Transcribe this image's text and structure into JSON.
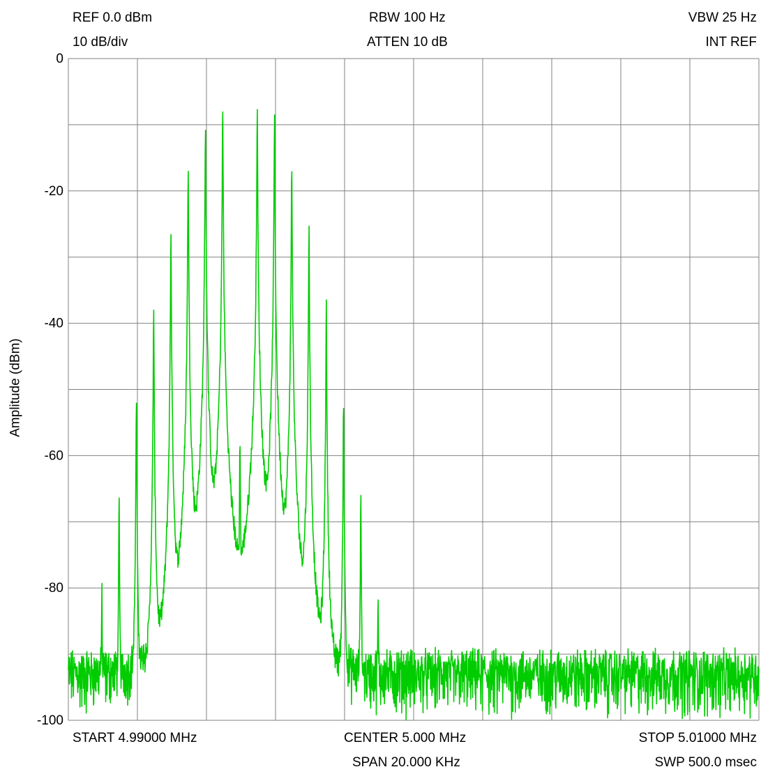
{
  "header": {
    "ref_level": "REF 0.0 dBm",
    "scale": "10 dB/div",
    "rbw": "RBW 100 Hz",
    "atten": "ATTEN 10 dB",
    "vbw": "VBW 25 Hz",
    "int_ref": "INT REF"
  },
  "footer": {
    "start": "START 4.99000 MHz",
    "center": "CENTER 5.000 MHz",
    "stop": "STOP 5.01000 MHz",
    "span": "SPAN 20.000 KHz",
    "sweep": "SWP 500.0 msec"
  },
  "chart_data": {
    "type": "line",
    "title": "",
    "xlabel": "",
    "ylabel": "Amplitude (dBm)",
    "xlim_mhz": [
      4.99,
      5.01
    ],
    "ylim": [
      -100,
      0
    ],
    "yticks": [
      0,
      -20,
      -40,
      -60,
      -80,
      -100
    ],
    "x_divisions": 10,
    "y_divisions": 10,
    "grid": true,
    "trace_color": "#00cc00",
    "noise_floor_dbm": -93,
    "peaks": [
      {
        "x_mhz": 4.99097,
        "dbm": -80.0
      },
      {
        "x_mhz": 4.99147,
        "dbm": -66.0
      },
      {
        "x_mhz": 4.99197,
        "dbm": -51.0
      },
      {
        "x_mhz": 4.99247,
        "dbm": -37.5
      },
      {
        "x_mhz": 4.99297,
        "dbm": -25.5
      },
      {
        "x_mhz": 4.99347,
        "dbm": -15.7
      },
      {
        "x_mhz": 4.99397,
        "dbm": -9.0
      },
      {
        "x_mhz": 4.99447,
        "dbm": -7.3
      },
      {
        "x_mhz": 4.99497,
        "dbm": -56.5
      },
      {
        "x_mhz": 4.99547,
        "dbm": -7.3
      },
      {
        "x_mhz": 4.99597,
        "dbm": -9.0
      },
      {
        "x_mhz": 4.99647,
        "dbm": -15.5
      },
      {
        "x_mhz": 4.99697,
        "dbm": -25.2
      },
      {
        "x_mhz": 4.99747,
        "dbm": -37.0
      },
      {
        "x_mhz": 4.99797,
        "dbm": -51.0
      },
      {
        "x_mhz": 4.99847,
        "dbm": -66.0
      },
      {
        "x_mhz": 4.99897,
        "dbm": -81.0
      }
    ]
  }
}
